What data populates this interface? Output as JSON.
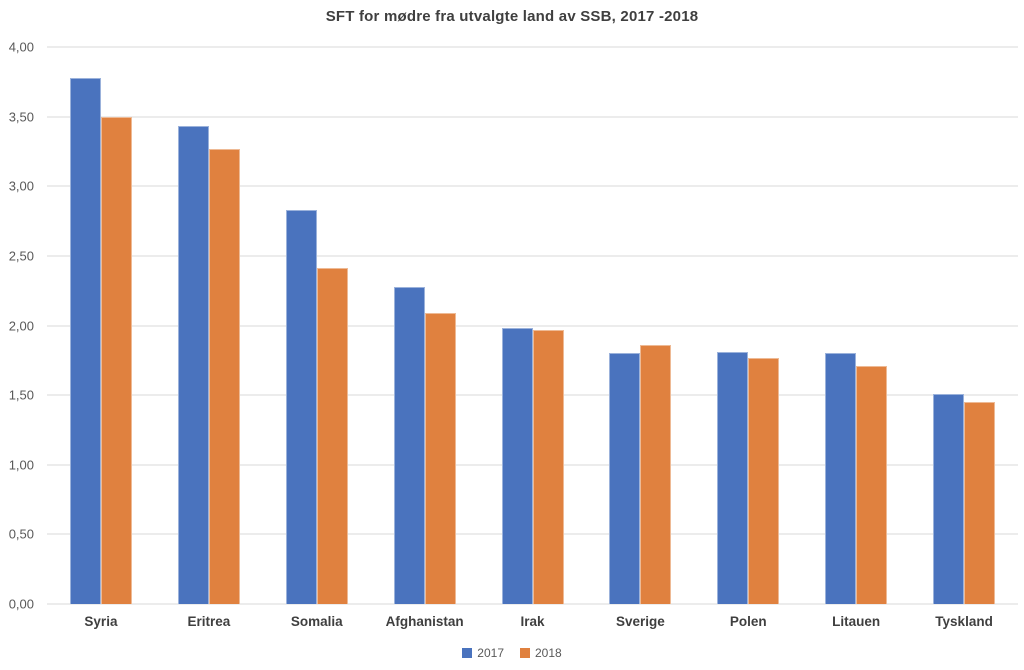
{
  "title": "SFT for mødre fra utvalgte land av SSB, 2017 -2018",
  "colors": {
    "series_2017": "#4a73be",
    "series_2018": "#e0813f",
    "gridline": "#d9d9d9",
    "title_text": "#3f3f3f",
    "tick_text": "#595959"
  },
  "chart_data": {
    "type": "bar",
    "title": "SFT for mødre fra utvalgte land av SSB, 2017 -2018",
    "categories": [
      "Syria",
      "Eritrea",
      "Somalia",
      "Afghanistan",
      "Irak",
      "Sverige",
      "Polen",
      "Litauen",
      "Tyskland"
    ],
    "series": [
      {
        "name": "2017",
        "color": "#4a73be",
        "values": [
          3.78,
          3.43,
          2.83,
          2.28,
          1.98,
          1.8,
          1.81,
          1.8,
          1.51
        ]
      },
      {
        "name": "2018",
        "color": "#e0813f",
        "values": [
          3.5,
          3.27,
          2.41,
          2.09,
          1.97,
          1.86,
          1.77,
          1.71,
          1.45
        ]
      }
    ],
    "xlabel": "",
    "ylabel": "",
    "ylim": [
      0,
      4
    ],
    "ytick_step": 0.5,
    "ytick_labels": [
      "0,00",
      "0,50",
      "1,00",
      "1,50",
      "2,00",
      "2,50",
      "3,00",
      "3,50",
      "4,00"
    ],
    "grid": "horizontal",
    "legend_position": "bottom"
  }
}
